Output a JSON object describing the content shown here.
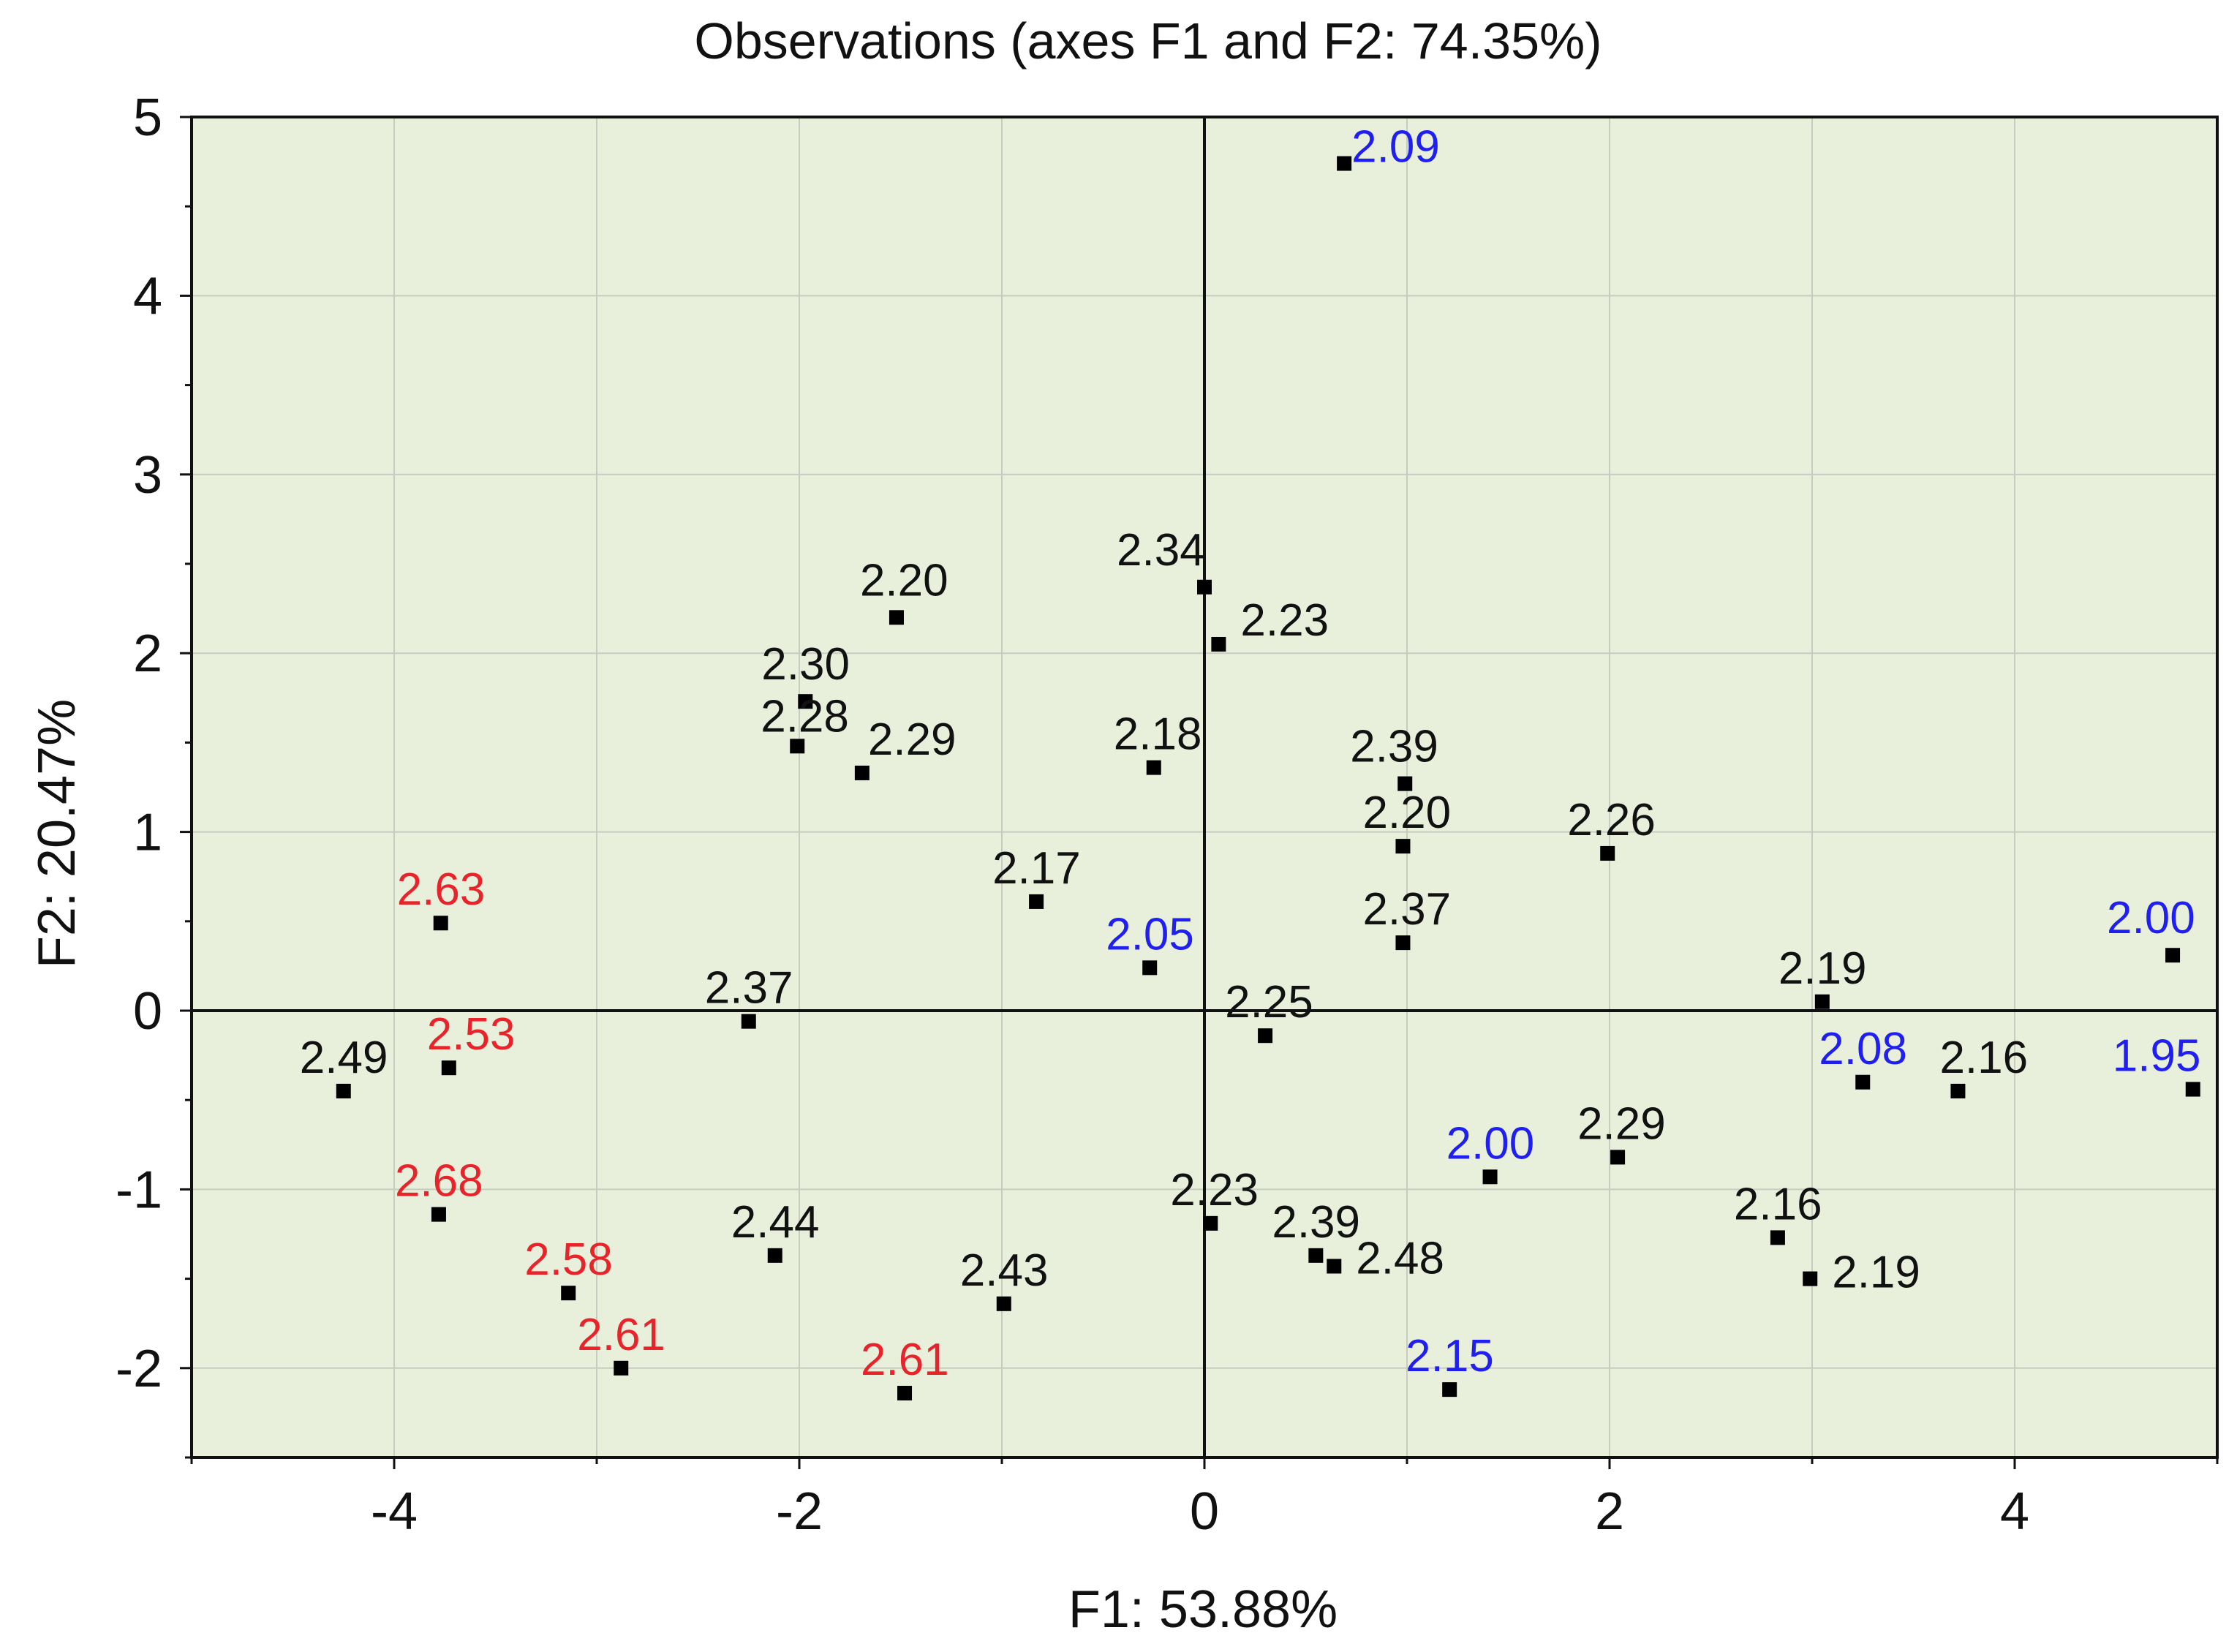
{
  "chart_data": {
    "type": "scatter",
    "title": "Observations (axes F1 and F2: 74.35%)",
    "xlabel": "F1: 53.88%",
    "ylabel": "F2: 20.47%",
    "xlim": [
      -5,
      5
    ],
    "ylim": [
      -2.5,
      5
    ],
    "xticks": [
      "-4",
      "-2",
      "0",
      "2",
      "4"
    ],
    "yticks": [
      "-2",
      "-1",
      "0",
      "1",
      "2",
      "3",
      "4",
      "5"
    ],
    "grid": true,
    "background": "#e8f0dc",
    "label_colors": {
      "black": "#111111",
      "red": "#e8232a",
      "blue": "#1f1ff0"
    },
    "points": [
      {
        "x": 0.69,
        "y": 4.74,
        "label": "2.09",
        "color": "blue",
        "dx": 10,
        "dy": -2
      },
      {
        "x": 0.0,
        "y": 2.37,
        "label": "2.34",
        "color": "black",
        "dx": -120,
        "dy": -30
      },
      {
        "x": -1.52,
        "y": 2.2,
        "label": "2.20",
        "color": "black",
        "dx": -50,
        "dy": -30
      },
      {
        "x": 0.07,
        "y": 2.05,
        "label": "2.23",
        "color": "black",
        "dx": 30,
        "dy": -12
      },
      {
        "x": -1.97,
        "y": 1.73,
        "label": "2.30",
        "color": "black",
        "dx": -60,
        "dy": -30
      },
      {
        "x": -2.01,
        "y": 1.48,
        "label": "2.28",
        "color": "black",
        "dx": -50,
        "dy": -20
      },
      {
        "x": -1.69,
        "y": 1.33,
        "label": "2.29",
        "color": "black",
        "dx": 8,
        "dy": -25
      },
      {
        "x": -0.25,
        "y": 1.36,
        "label": "2.18",
        "color": "black",
        "dx": -55,
        "dy": -25
      },
      {
        "x": 0.99,
        "y": 1.27,
        "label": "2.39",
        "color": "black",
        "dx": -75,
        "dy": -30
      },
      {
        "x": 0.98,
        "y": 0.92,
        "label": "2.20",
        "color": "black",
        "dx": -55,
        "dy": -25
      },
      {
        "x": 1.99,
        "y": 0.88,
        "label": "2.26",
        "color": "black",
        "dx": -55,
        "dy": -25
      },
      {
        "x": -0.83,
        "y": 0.61,
        "label": "2.17",
        "color": "black",
        "dx": -60,
        "dy": -25
      },
      {
        "x": 0.98,
        "y": 0.38,
        "label": "2.37",
        "color": "black",
        "dx": -55,
        "dy": -25
      },
      {
        "x": -0.27,
        "y": 0.24,
        "label": "2.05",
        "color": "blue",
        "dx": -60,
        "dy": -25
      },
      {
        "x": -3.77,
        "y": 0.49,
        "label": "2.63",
        "color": "red",
        "dx": -60,
        "dy": -25
      },
      {
        "x": 4.78,
        "y": 0.31,
        "label": "2.00",
        "color": "blue",
        "dx": -90,
        "dy": -30
      },
      {
        "x": 3.05,
        "y": 0.05,
        "label": "2.19",
        "color": "black",
        "dx": -60,
        "dy": -25
      },
      {
        "x": -2.25,
        "y": -0.06,
        "label": "2.37",
        "color": "black",
        "dx": -60,
        "dy": -25
      },
      {
        "x": 0.3,
        "y": -0.14,
        "label": "2.25",
        "color": "black",
        "dx": -55,
        "dy": -25
      },
      {
        "x": -3.73,
        "y": -0.32,
        "label": "2.53",
        "color": "red",
        "dx": -30,
        "dy": -25
      },
      {
        "x": -4.25,
        "y": -0.45,
        "label": "2.49",
        "color": "black",
        "dx": -60,
        "dy": -25
      },
      {
        "x": 3.25,
        "y": -0.4,
        "label": "2.08",
        "color": "blue",
        "dx": -60,
        "dy": -25
      },
      {
        "x": 3.72,
        "y": -0.45,
        "label": "2.16",
        "color": "black",
        "dx": -25,
        "dy": -25
      },
      {
        "x": 4.88,
        "y": -0.44,
        "label": "1.95",
        "color": "blue",
        "dx": -110,
        "dy": -25
      },
      {
        "x": 2.04,
        "y": -0.82,
        "label": "2.29",
        "color": "black",
        "dx": -55,
        "dy": -25
      },
      {
        "x": 1.41,
        "y": -0.93,
        "label": "2.00",
        "color": "blue",
        "dx": -60,
        "dy": -25
      },
      {
        "x": -3.78,
        "y": -1.14,
        "label": "2.68",
        "color": "red",
        "dx": -60,
        "dy": -25
      },
      {
        "x": 0.03,
        "y": -1.19,
        "label": "2.23",
        "color": "black",
        "dx": -55,
        "dy": -25
      },
      {
        "x": 2.83,
        "y": -1.27,
        "label": "2.16",
        "color": "black",
        "dx": -60,
        "dy": -25
      },
      {
        "x": -2.12,
        "y": -1.37,
        "label": "2.44",
        "color": "black",
        "dx": -60,
        "dy": -25
      },
      {
        "x": 0.55,
        "y": -1.37,
        "label": "2.39",
        "color": "black",
        "dx": -60,
        "dy": -25
      },
      {
        "x": 0.64,
        "y": -1.43,
        "label": "2.48",
        "color": "black",
        "dx": 30,
        "dy": 10
      },
      {
        "x": 2.99,
        "y": -1.5,
        "label": "2.19",
        "color": "black",
        "dx": 30,
        "dy": 12
      },
      {
        "x": -3.14,
        "y": -1.58,
        "label": "2.58",
        "color": "red",
        "dx": -60,
        "dy": -25
      },
      {
        "x": -0.99,
        "y": -1.64,
        "label": "2.43",
        "color": "black",
        "dx": -60,
        "dy": -25
      },
      {
        "x": -2.88,
        "y": -2.0,
        "label": "2.61",
        "color": "red",
        "dx": -60,
        "dy": -25
      },
      {
        "x": -1.48,
        "y": -2.14,
        "label": "2.61",
        "color": "red",
        "dx": -60,
        "dy": -25
      },
      {
        "x": 1.21,
        "y": -2.12,
        "label": "2.15",
        "color": "blue",
        "dx": -60,
        "dy": -25
      }
    ]
  }
}
